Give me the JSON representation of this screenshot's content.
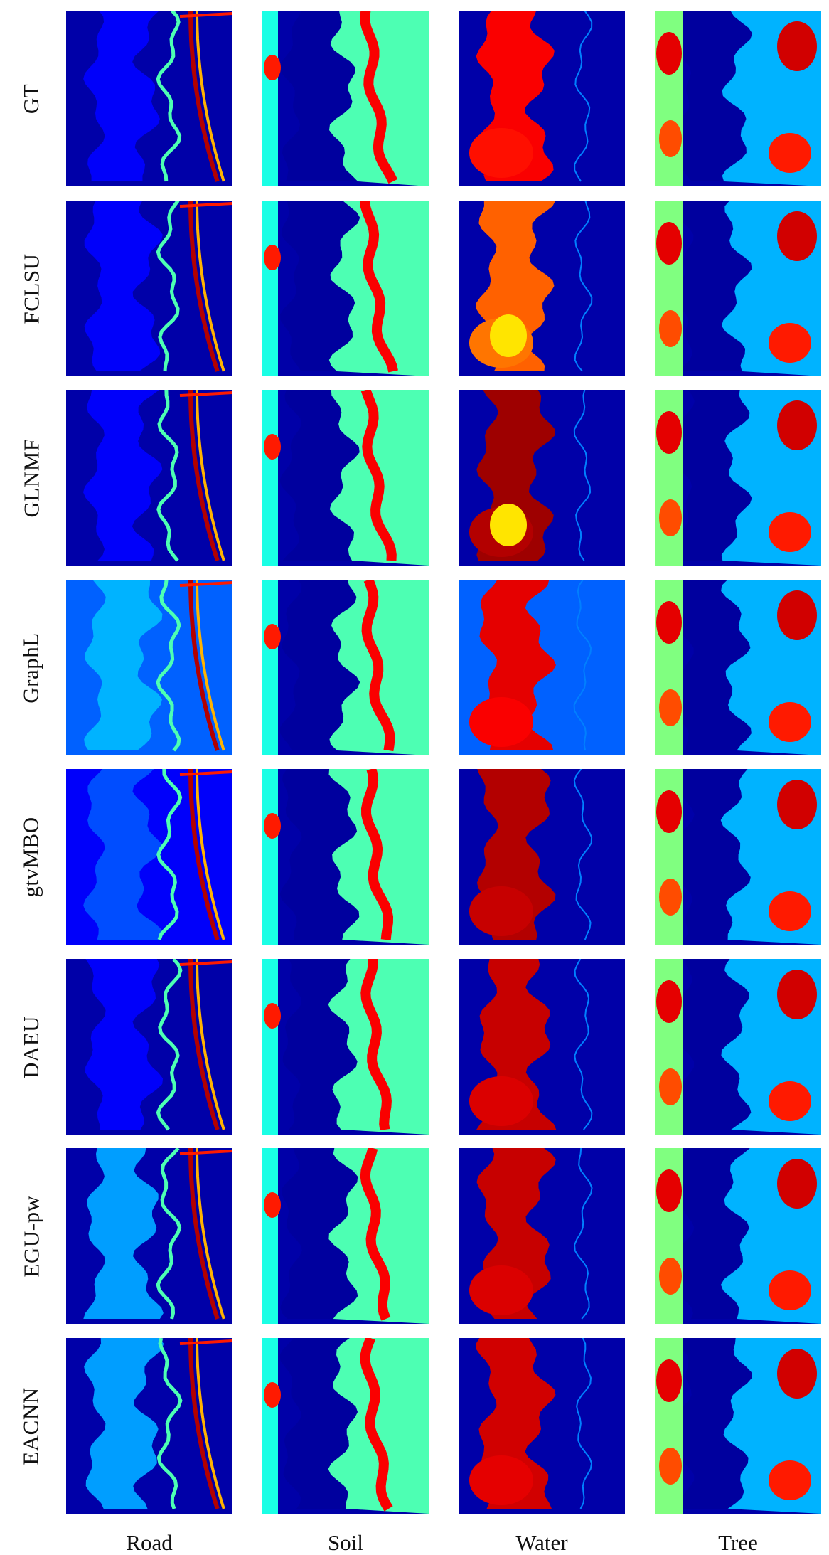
{
  "rows": [
    "GT",
    "FCLSU",
    "GLNMF",
    "GraphL",
    "gtvMBO",
    "DAEU",
    "EGU-pw",
    "EACNN"
  ],
  "columns": [
    "Road",
    "Soil",
    "Water",
    "Tree"
  ],
  "colormap": "jet",
  "colors": {
    "background": "#ffffff",
    "jet_low": "#00008f",
    "jet_mid": "#00ffff",
    "jet_high": "#800000"
  }
}
